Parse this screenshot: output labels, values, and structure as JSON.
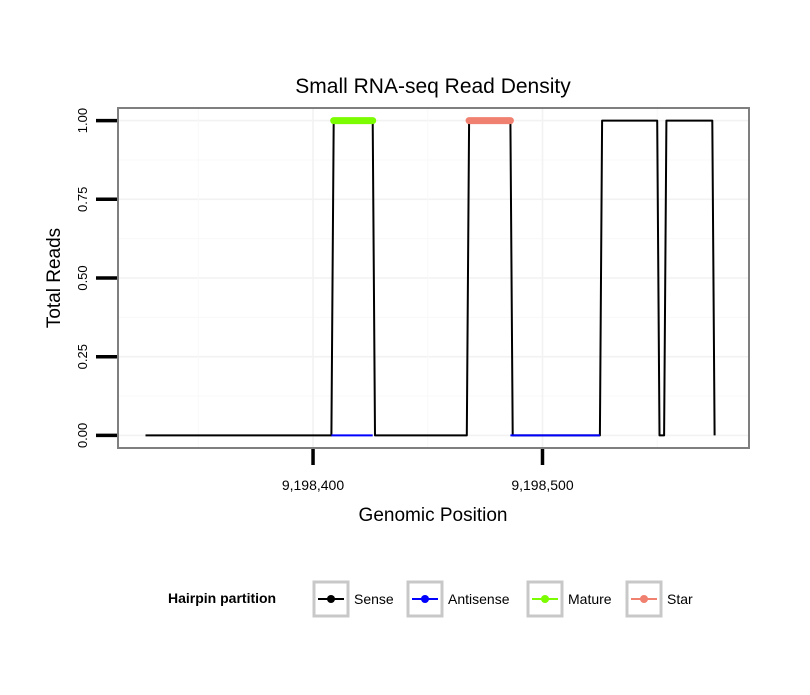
{
  "chart_data": {
    "type": "line",
    "title": "Small RNA-seq Read Density",
    "xlabel": "Genomic Position",
    "ylabel": "Total Reads",
    "xlim": [
      9198315,
      9198590
    ],
    "ylim": [
      -0.04,
      1.04
    ],
    "x_ticks": [
      {
        "value": 9198400,
        "label": "9,198,400"
      },
      {
        "value": 9198500,
        "label": "9,198,500"
      }
    ],
    "y_ticks": [
      {
        "value": 0,
        "label": "0.00"
      },
      {
        "value": 0.25,
        "label": "0.25"
      },
      {
        "value": 0.5,
        "label": "0.50"
      },
      {
        "value": 0.75,
        "label": "0.75"
      },
      {
        "value": 1,
        "label": "1.00"
      }
    ],
    "grid": true,
    "legend": {
      "title": "Hairpin partition",
      "position": "bottom",
      "entries": [
        {
          "name": "Sense",
          "color": "#000000"
        },
        {
          "name": "Antisense",
          "color": "#0000ff"
        },
        {
          "name": "Mature",
          "color": "#7cfc00"
        },
        {
          "name": "Star",
          "color": "#f08070"
        }
      ]
    },
    "series": [
      {
        "name": "Sense",
        "color": "#000000",
        "x": [
          9198327,
          9198408,
          9198409,
          9198426,
          9198427,
          9198467,
          9198468,
          9198486,
          9198487,
          9198525,
          9198526,
          9198550,
          9198551,
          9198553,
          9198554,
          9198574,
          9198575
        ],
        "y": [
          0,
          0,
          1,
          1,
          0,
          0,
          1,
          1,
          0,
          0,
          1,
          1,
          0,
          0,
          1,
          1,
          0
        ]
      },
      {
        "name": "Antisense",
        "color": "#0000ff",
        "x": [
          9198408,
          9198426,
          9198467,
          9198486,
          9198525,
          9198575
        ],
        "y": [
          0,
          0,
          null,
          0,
          0,
          null
        ]
      },
      {
        "name": "Mature",
        "color": "#7cfc00",
        "x": [
          9198409,
          9198426
        ],
        "y": [
          1,
          1
        ]
      },
      {
        "name": "Star",
        "color": "#f08070",
        "x": [
          9198468,
          9198486
        ],
        "y": [
          1,
          1
        ]
      }
    ]
  }
}
